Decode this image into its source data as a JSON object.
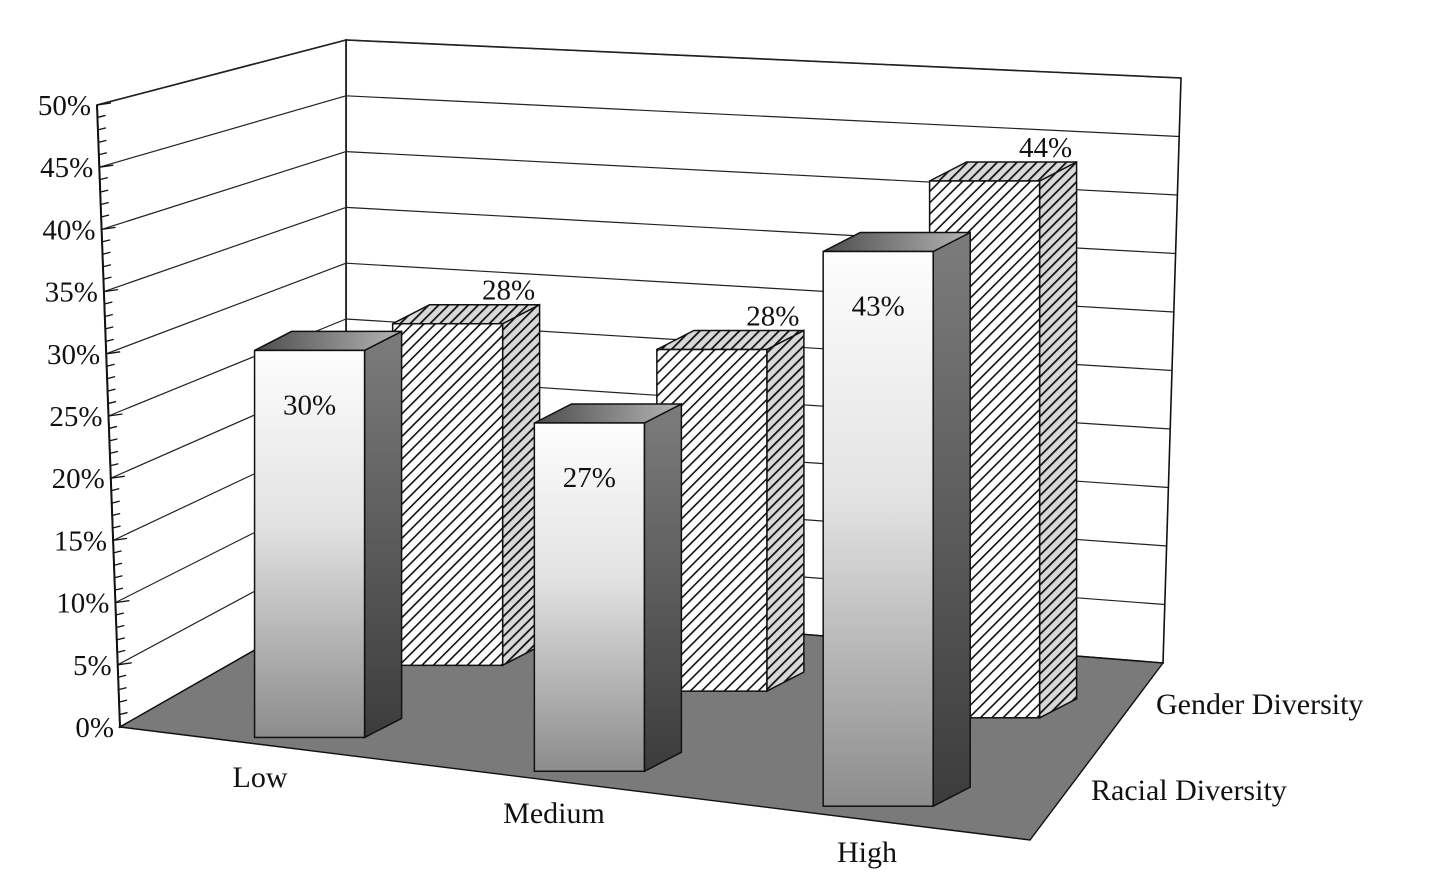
{
  "chart_data": {
    "type": "bar",
    "variant": "3d-clustered-bar",
    "categories": [
      "Low",
      "Medium",
      "High"
    ],
    "series": [
      {
        "name": "Racial Diversity",
        "values": [
          30,
          27,
          43
        ],
        "style": "gradient"
      },
      {
        "name": "Gender Diversity",
        "values": [
          28,
          28,
          44
        ],
        "style": "hatched"
      }
    ],
    "data_labels": {
      "Racial Diversity": [
        "30%",
        "27%",
        "43%"
      ],
      "Gender Diversity": [
        "28%",
        "28%",
        "44%"
      ]
    },
    "title": "",
    "xlabel": "",
    "ylabel": "",
    "ylim": [
      0,
      50
    ],
    "y_ticks": [
      "0%",
      "5%",
      "10%",
      "15%",
      "20%",
      "25%",
      "30%",
      "35%",
      "40%",
      "45%",
      "50%"
    ],
    "grid": true,
    "colors": {
      "floor": "#7a7a7a",
      "bar_light": "#fbfbfb",
      "bar_dark": "#6f6f6f",
      "side": "#4a4a4a",
      "line": "#111111"
    }
  }
}
